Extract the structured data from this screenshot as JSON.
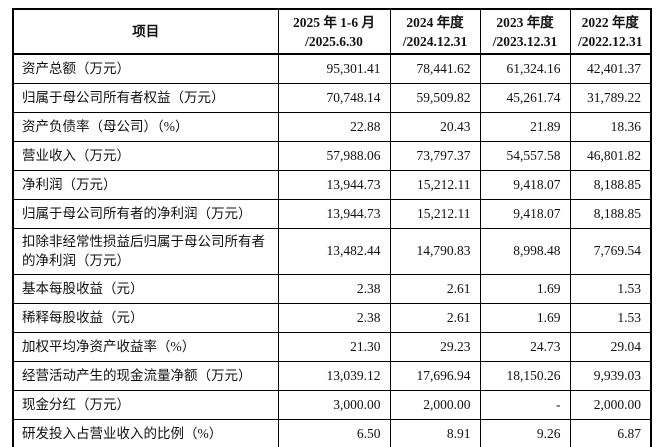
{
  "table": {
    "corner_header": "项目",
    "period_headers": [
      {
        "line1": "2025 年 1-6 月",
        "line2": "/2025.6.30"
      },
      {
        "line1": "2024 年度",
        "line2": "/2024.12.31"
      },
      {
        "line1": "2023 年度",
        "line2": "/2023.12.31"
      },
      {
        "line1": "2022 年度",
        "line2": "/2022.12.31"
      }
    ],
    "rows": [
      {
        "label": "资产总额（万元）",
        "values": [
          "95,301.41",
          "78,441.62",
          "61,324.16",
          "42,401.37"
        ]
      },
      {
        "label": "归属于母公司所有者权益（万元）",
        "values": [
          "70,748.14",
          "59,509.82",
          "45,261.74",
          "31,789.22"
        ]
      },
      {
        "label": "资产负债率（母公司）（%）",
        "values": [
          "22.88",
          "20.43",
          "21.89",
          "18.36"
        ]
      },
      {
        "label": "营业收入（万元）",
        "values": [
          "57,988.06",
          "73,797.37",
          "54,557.58",
          "46,801.82"
        ]
      },
      {
        "label": "净利润（万元）",
        "values": [
          "13,944.73",
          "15,212.11",
          "9,418.07",
          "8,188.85"
        ]
      },
      {
        "label": "归属于母公司所有者的净利润（万元）",
        "values": [
          "13,944.73",
          "15,212.11",
          "9,418.07",
          "8,188.85"
        ]
      },
      {
        "label": "扣除非经常性损益后归属于母公司所有者的净利润（万元）",
        "values": [
          "13,482.44",
          "14,790.83",
          "8,998.48",
          "7,769.54"
        ]
      },
      {
        "label": "基本每股收益（元）",
        "values": [
          "2.38",
          "2.61",
          "1.69",
          "1.53"
        ]
      },
      {
        "label": "稀释每股收益（元）",
        "values": [
          "2.38",
          "2.61",
          "1.69",
          "1.53"
        ]
      },
      {
        "label": "加权平均净资产收益率（%）",
        "values": [
          "21.30",
          "29.23",
          "24.73",
          "29.04"
        ]
      },
      {
        "label": "经营活动产生的现金流量净额（万元）",
        "values": [
          "13,039.12",
          "17,696.94",
          "18,150.26",
          "9,939.03"
        ]
      },
      {
        "label": "现金分红（万元）",
        "values": [
          "3,000.00",
          "2,000.00",
          "-",
          "2,000.00"
        ]
      },
      {
        "label": "研发投入占营业收入的比例（%）",
        "values": [
          "6.50",
          "8.91",
          "9.26",
          "6.87"
        ]
      }
    ]
  },
  "colors": {
    "border": "#000000",
    "text": "#111111",
    "background": "#ffffff"
  }
}
